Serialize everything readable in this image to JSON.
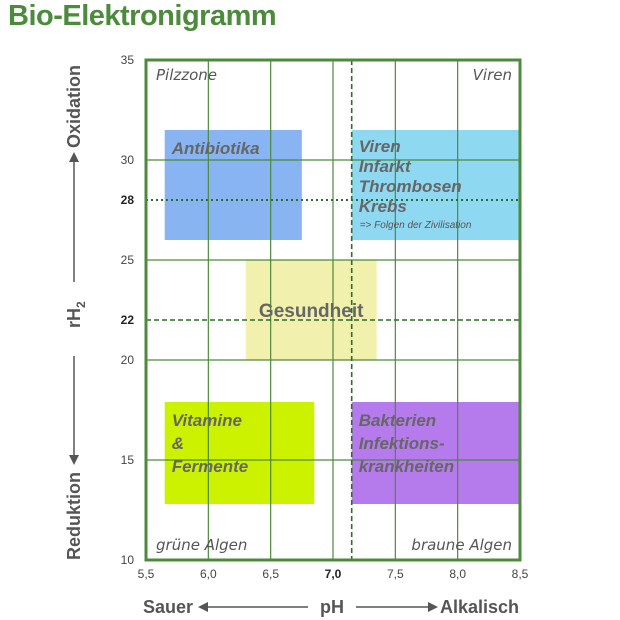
{
  "title": "Bio-Elektronigramm",
  "chart_data": {
    "type": "scatter",
    "xlim": [
      5.5,
      8.5
    ],
    "ylim": [
      10,
      35
    ],
    "x_ticks": [
      "5,5",
      "6,0",
      "6,5",
      "7,0",
      "7,5",
      "8,0",
      "8,5"
    ],
    "x_tick_values": [
      5.5,
      6.0,
      6.5,
      7.0,
      7.5,
      8.0,
      8.5
    ],
    "x_bold_tick": "7,0",
    "y_ticks": [
      "10",
      "15",
      "20",
      "22",
      "25",
      "28",
      "30",
      "35"
    ],
    "y_tick_values": [
      10,
      15,
      20,
      22,
      25,
      28,
      30,
      35
    ],
    "y_bold_ticks": [
      "22",
      "28"
    ],
    "grid": true,
    "reference_lines": [
      {
        "axis": "x",
        "value": 7.15,
        "style": "dashed"
      },
      {
        "axis": "y",
        "value": 22,
        "style": "dashed"
      },
      {
        "axis": "y",
        "value": 28,
        "style": "dotted"
      }
    ],
    "x_axis_label": {
      "left": "Sauer",
      "center": "pH",
      "right": "Alkalisch"
    },
    "y_axis_label": {
      "bottom": "Reduktion",
      "center": "rH",
      "center_sub": "2",
      "top": "Oxidation"
    },
    "corner_labels": {
      "top_left": "Pilzzone",
      "top_right": "Viren",
      "bottom_left": "grüne Algen",
      "bottom_right": "braune Algen"
    },
    "regions": [
      {
        "name": "antibiotika",
        "x0": 5.65,
        "x1": 6.75,
        "y0": 26.0,
        "y1": 31.5,
        "color": "#88b4f2",
        "lines": [
          "Antibiotika"
        ],
        "note": ""
      },
      {
        "name": "viren-infarkt",
        "x0": 7.15,
        "x1": 8.5,
        "y0": 26.0,
        "y1": 31.5,
        "color": "#8fd8f2",
        "lines": [
          "Viren",
          "Infarkt",
          "Thrombosen",
          "Krebs"
        ],
        "note": "=> Folgen der Zivilisation"
      },
      {
        "name": "gesundheit",
        "x0": 6.3,
        "x1": 7.35,
        "y0": 20.0,
        "y1": 25.0,
        "color": "#f1f1ad",
        "lines": [
          "Gesundheit"
        ],
        "note": ""
      },
      {
        "name": "vitamine",
        "x0": 5.65,
        "x1": 6.85,
        "y0": 12.8,
        "y1": 17.9,
        "color": "#ccf200",
        "lines": [
          "Vitamine",
          "&",
          "Fermente"
        ],
        "note": ""
      },
      {
        "name": "bakterien",
        "x0": 7.15,
        "x1": 8.5,
        "y0": 12.8,
        "y1": 17.9,
        "color": "#b57bec",
        "lines": [
          "Bakterien",
          "Infektions-",
          "krankheiten"
        ],
        "note": ""
      }
    ],
    "colors": {
      "frame": "#4c8a3c",
      "grid": "#4c8a3c",
      "title": "#4c8a3c"
    }
  }
}
